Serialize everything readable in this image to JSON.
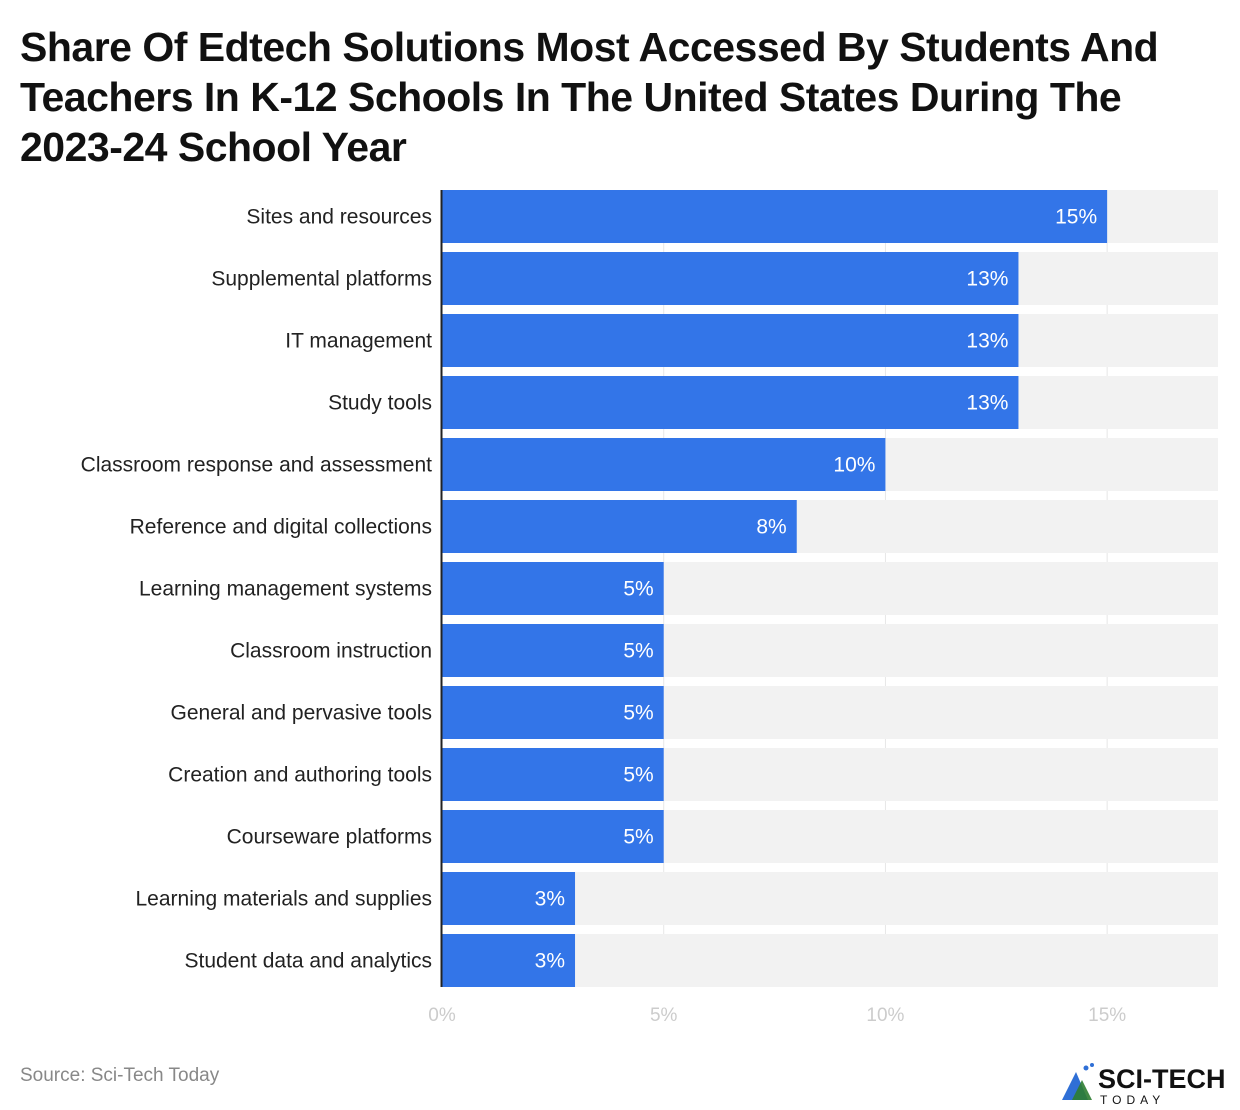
{
  "title": "Share Of Edtech Solutions Most Accessed By Students And Teachers In K-12 Schools In The United States During The 2023-24 School Year",
  "source": "Source: Sci-Tech Today",
  "logo": {
    "main": "SCI-TECH",
    "sub": "TODAY"
  },
  "colors": {
    "bar": "#3375E8",
    "track": "#F2F2F2",
    "axis": "#222222",
    "tick": "#CCCCCC"
  },
  "chart_data": {
    "type": "bar",
    "orientation": "horizontal",
    "categories": [
      "Sites and resources",
      "Supplemental platforms",
      "IT management",
      "Study tools",
      "Classroom response and assessment",
      "Reference and digital collections",
      "Learning management systems",
      "Classroom instruction",
      "General and pervasive tools",
      "Creation and authoring tools",
      "Courseware platforms",
      "Learning materials and supplies",
      "Student data and analytics"
    ],
    "values": [
      15,
      13,
      13,
      13,
      10,
      8,
      5,
      5,
      5,
      5,
      5,
      3,
      3
    ],
    "data_labels": [
      "15%",
      "13%",
      "13%",
      "13%",
      "10%",
      "8%",
      "5%",
      "5%",
      "5%",
      "5%",
      "5%",
      "3%",
      "3%"
    ],
    "xlim": [
      0,
      17.5
    ],
    "xticks": [
      0,
      5,
      10,
      15
    ],
    "xtick_labels": [
      "0%",
      "5%",
      "10%",
      "15%"
    ],
    "grid": true
  }
}
